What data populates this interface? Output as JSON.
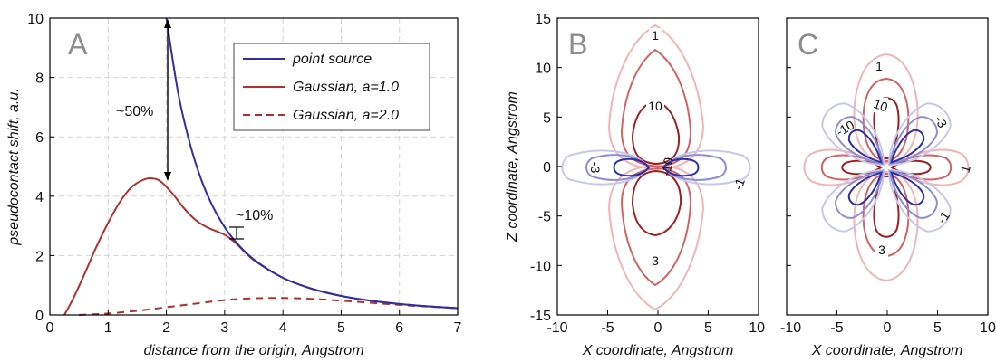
{
  "chart_data": [
    {
      "type": "line",
      "panel_letter": "A",
      "xlabel": "distance from the origin, Angstrom",
      "ylabel": "pseudocontact shift, a.u.",
      "xlim": [
        0,
        7
      ],
      "ylim": [
        0,
        10
      ],
      "xticks": [
        "0",
        "1",
        "2",
        "3",
        "4",
        "5",
        "6",
        "7"
      ],
      "yticks": [
        "0",
        "2",
        "4",
        "6",
        "8",
        "10"
      ],
      "grid": true,
      "legend_position": "top-right",
      "series": [
        {
          "name": "point source",
          "color": "#2e2ea8",
          "dash": "solid",
          "x": [
            2.0,
            2.2,
            2.4,
            2.6,
            2.8,
            3.0,
            3.2,
            3.5,
            4.0,
            4.5,
            5.0,
            5.5,
            6.0,
            6.5,
            7.0
          ],
          "y": [
            10.0,
            7.5,
            5.8,
            4.55,
            3.64,
            2.96,
            2.44,
            1.87,
            1.25,
            0.88,
            0.64,
            0.48,
            0.37,
            0.29,
            0.23
          ]
        },
        {
          "name": "Gaussian, a=1.0",
          "color": "#b03030",
          "dash": "solid",
          "x": [
            0.25,
            0.4,
            0.6,
            0.8,
            1.0,
            1.2,
            1.4,
            1.6,
            1.75,
            1.9,
            2.1,
            2.3,
            2.5,
            2.7,
            3.0,
            3.2,
            3.5,
            4.0,
            4.5,
            5.0,
            5.5,
            6.0,
            6.5,
            7.0
          ],
          "y": [
            0.0,
            0.55,
            1.4,
            2.3,
            3.1,
            3.8,
            4.3,
            4.55,
            4.6,
            4.5,
            4.1,
            3.6,
            3.2,
            2.95,
            2.7,
            2.4,
            1.85,
            1.25,
            0.88,
            0.64,
            0.48,
            0.37,
            0.29,
            0.23
          ]
        },
        {
          "name": "Gaussian, a=2.0",
          "color": "#b03030",
          "dash": "dashed",
          "x": [
            0.5,
            1.0,
            1.5,
            2.0,
            2.5,
            3.0,
            3.5,
            4.0,
            4.5,
            5.0,
            5.5,
            6.0,
            6.5,
            7.0
          ],
          "y": [
            0.0,
            0.05,
            0.14,
            0.26,
            0.38,
            0.5,
            0.56,
            0.57,
            0.54,
            0.48,
            0.41,
            0.34,
            0.28,
            0.23
          ]
        }
      ],
      "annotations": [
        {
          "text": "~50%",
          "x": 1.2,
          "y": 7.0
        },
        {
          "text": "~10%",
          "x": 3.4,
          "y": 3.4
        }
      ]
    },
    {
      "type": "contour",
      "panel_letter": "B",
      "xlabel": "X coordinate, Angstrom",
      "ylabel": "Z coordinate, Angstrom",
      "xlim": [
        -10,
        10
      ],
      "ylim": [
        -15,
        15
      ],
      "xticks": [
        "-10",
        "-5",
        "0",
        "5",
        "10"
      ],
      "yticks": [
        "-15",
        "-10",
        "-5",
        "0",
        "5",
        "10",
        "15"
      ],
      "contour_labels": [
        "1",
        "10",
        "3",
        "-3",
        "-10",
        "-1"
      ]
    },
    {
      "type": "contour",
      "panel_letter": "C",
      "xlabel": "X coordinate, Angstrom",
      "xlim": [
        -10,
        10
      ],
      "ylim": [
        -15,
        15
      ],
      "xticks": [
        "-10",
        "-5",
        "0",
        "5",
        "10"
      ],
      "contour_labels": [
        "1",
        "10",
        "-3",
        "-10",
        "1",
        "-1",
        "3"
      ]
    }
  ]
}
